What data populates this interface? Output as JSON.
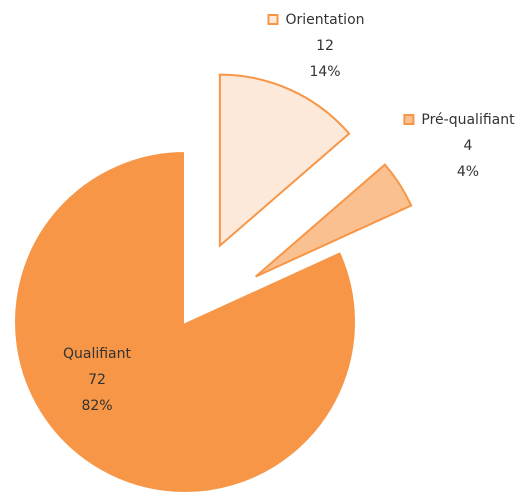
{
  "chart_data": {
    "type": "pie",
    "categories": [
      "Orientation",
      "Pré-qualifiant",
      "Qualifiant"
    ],
    "values": [
      12,
      4,
      72
    ],
    "percent_labels": [
      "14%",
      "4%",
      "82%"
    ],
    "colors": [
      "#fde9d9",
      "#fac090",
      "#f79646"
    ],
    "exploded": [
      true,
      true,
      false
    ]
  }
}
